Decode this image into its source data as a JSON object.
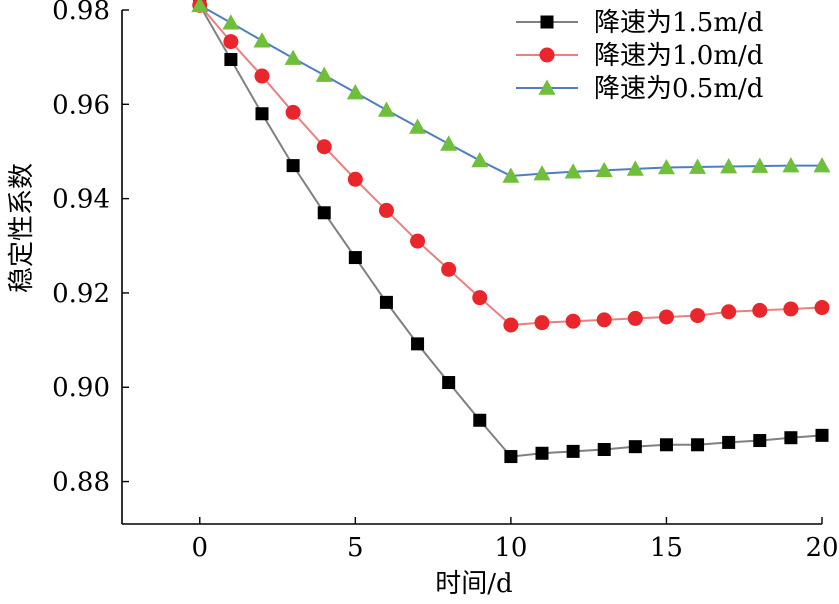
{
  "chart_data": {
    "type": "line",
    "title": "",
    "xlabel": "时间/d",
    "ylabel": "稳定性系数",
    "xlim": [
      -2.5,
      20
    ],
    "ylim": [
      0.871,
      0.98
    ],
    "xticks": [
      0,
      5,
      10,
      15,
      20
    ],
    "yticks": [
      0.88,
      0.9,
      0.92,
      0.94,
      0.96,
      0.98
    ],
    "xtick_labels": [
      "0",
      "5",
      "10",
      "15",
      "20"
    ],
    "ytick_labels": [
      "0.88",
      "0.90",
      "0.92",
      "0.94",
      "0.96",
      "0.98"
    ],
    "grid": false,
    "legend_position": "top-right",
    "x": [
      0,
      1,
      2,
      3,
      4,
      5,
      6,
      7,
      8,
      9,
      10,
      11,
      12,
      13,
      14,
      15,
      16,
      17,
      18,
      19,
      20
    ],
    "series": [
      {
        "name": "降速为1.5m/d",
        "marker": "square",
        "color": "#000000",
        "line_color": "#808080",
        "values": [
          0.981,
          0.9695,
          0.958,
          0.947,
          0.937,
          0.9275,
          0.918,
          0.9092,
          0.901,
          0.893,
          0.8853,
          0.886,
          0.8864,
          0.8868,
          0.8874,
          0.8878,
          0.8878,
          0.8883,
          0.8887,
          0.8893,
          0.8898
        ]
      },
      {
        "name": "降速为1.0m/d",
        "marker": "circle",
        "color": "#e8262b",
        "line_color": "#e88080",
        "values": [
          0.981,
          0.9733,
          0.966,
          0.9583,
          0.951,
          0.9441,
          0.9375,
          0.931,
          0.925,
          0.919,
          0.9132,
          0.9137,
          0.914,
          0.9143,
          0.9146,
          0.9149,
          0.9152,
          0.916,
          0.9163,
          0.9166,
          0.9169
        ]
      },
      {
        "name": "降速为0.5m/d",
        "marker": "triangle",
        "color": "#6fbf3a",
        "line_color": "#4f7fbf",
        "values": [
          0.981,
          0.9773,
          0.9735,
          0.9698,
          0.9662,
          0.9625,
          0.9588,
          0.9552,
          0.9516,
          0.9481,
          0.9448,
          0.9453,
          0.9457,
          0.946,
          0.9463,
          0.9466,
          0.9467,
          0.9468,
          0.9469,
          0.947,
          0.947
        ]
      }
    ]
  }
}
